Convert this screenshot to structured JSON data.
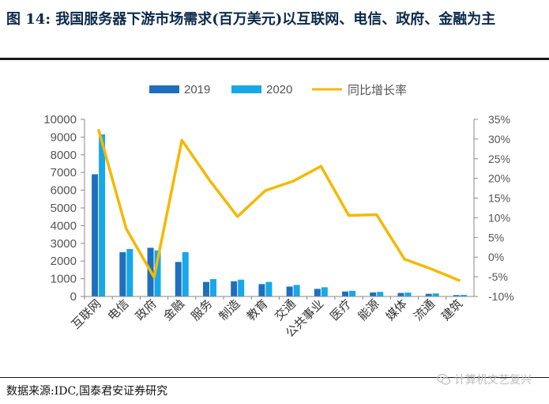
{
  "header": {
    "title": "图 14:  我国服务器下游市场需求(百万美元)以互联网、电信、政府、金融为主"
  },
  "footer": {
    "source": "数据来源:IDC,国泰君安证券研究",
    "watermark": "计算机文艺复兴",
    "watermark_icon": "wechat-icon"
  },
  "chart_data": {
    "type": "bar",
    "categories": [
      "互联网",
      "电信",
      "政府",
      "金融",
      "服务",
      "制造",
      "教育",
      "交通",
      "公共事业",
      "医疗",
      "能源",
      "媒体",
      "流通",
      "建筑"
    ],
    "series": [
      {
        "name": "2019",
        "type": "bar",
        "axis": "left",
        "color": "#1f6fbf",
        "values": [
          6900,
          2500,
          2750,
          1950,
          820,
          860,
          700,
          560,
          430,
          280,
          230,
          200,
          150,
          80
        ]
      },
      {
        "name": "2020",
        "type": "bar",
        "axis": "right_none",
        "color": "#16a8e8",
        "values": [
          9150,
          2680,
          2600,
          2500,
          980,
          950,
          820,
          650,
          520,
          320,
          260,
          220,
          170,
          90
        ]
      },
      {
        "name": "同比增长率",
        "type": "line",
        "axis": "right",
        "color": "#f5b800",
        "values": [
          32.5,
          7.2,
          -5.1,
          29.7,
          19.5,
          10.3,
          16.9,
          19.3,
          23.1,
          10.6,
          10.8,
          -0.5,
          -3.1,
          -6.0
        ]
      }
    ],
    "left_axis": {
      "min": 0,
      "max": 10000,
      "step": 1000,
      "tick_labels": [
        "0",
        "1000",
        "2000",
        "3000",
        "4000",
        "5000",
        "6000",
        "7000",
        "8000",
        "9000",
        "10000"
      ]
    },
    "right_axis": {
      "min": -10,
      "max": 35,
      "step": 5,
      "tick_labels": [
        "-10%",
        "-5%",
        "0%",
        "5%",
        "10%",
        "15%",
        "20%",
        "25%",
        "30%",
        "35%"
      ]
    },
    "legend": {
      "position": "top-center",
      "items": [
        "2019",
        "2020",
        "同比增长率"
      ]
    },
    "grid": false
  }
}
